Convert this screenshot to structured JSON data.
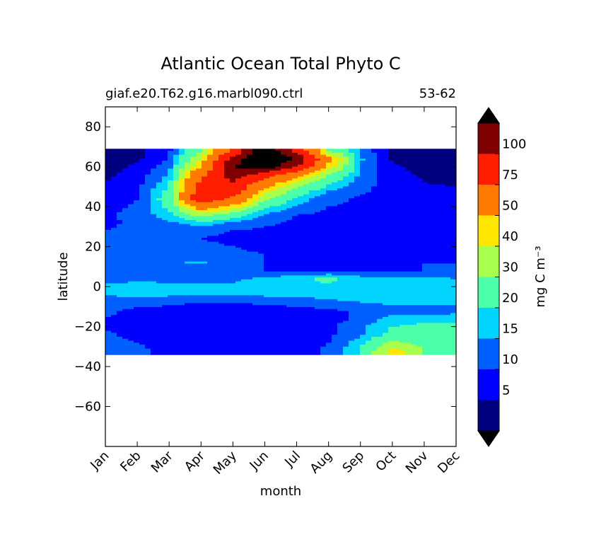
{
  "chart_data": {
    "type": "heatmap",
    "title": "Atlantic Ocean Total Phyto C",
    "subtitle_left": "giaf.e20.T62.g16.marbl090.ctrl",
    "subtitle_right": "53-62",
    "xlabel": "month",
    "ylabel": "latitude",
    "x_ticks": [
      "Jan",
      "Feb",
      "Mar",
      "Apr",
      "May",
      "Jun",
      "Jul",
      "Aug",
      "Sep",
      "Oct",
      "Nov",
      "Dec"
    ],
    "y_ticks": [
      80,
      60,
      40,
      20,
      0,
      -20,
      -40,
      -60
    ],
    "ylim": [
      -80,
      90
    ],
    "data_lat_range": [
      -34,
      69
    ],
    "colorbar": {
      "label": "mg C m⁻³",
      "tick_labels": [
        "5",
        "10",
        "15",
        "20",
        "30",
        "40",
        "50",
        "75",
        "100"
      ],
      "levels": [
        0,
        5,
        10,
        15,
        20,
        30,
        40,
        50,
        75,
        100,
        120
      ],
      "colors": [
        "#00007f",
        "#0000ff",
        "#0060ff",
        "#00d4ff",
        "#4cffaa",
        "#a8ff4c",
        "#ffe500",
        "#ff7a00",
        "#ff1e00",
        "#7f0000"
      ],
      "under_color": "#000000",
      "over_color": "#000000",
      "extend": "both"
    },
    "latitudes": [
      68,
      64,
      60,
      56,
      52,
      48,
      44,
      40,
      36,
      32,
      28,
      24,
      20,
      16,
      12,
      8,
      4,
      0,
      -4,
      -8,
      -12,
      -16,
      -20,
      -24,
      -28,
      -32
    ],
    "months": [
      1,
      2,
      3,
      4,
      5,
      6,
      7,
      8,
      9,
      10,
      11,
      12
    ],
    "values": [
      [
        2,
        4,
        9,
        30,
        80,
        140,
        90,
        30,
        14,
        4,
        2,
        1
      ],
      [
        1,
        4,
        10,
        40,
        110,
        140,
        120,
        55,
        16,
        4,
        2,
        1
      ],
      [
        3,
        6,
        13,
        50,
        120,
        135,
        100,
        45,
        15,
        6,
        3,
        2
      ],
      [
        4,
        7,
        16,
        70,
        110,
        90,
        55,
        30,
        14,
        7,
        4,
        3
      ],
      [
        5,
        8,
        18,
        80,
        100,
        60,
        38,
        22,
        12,
        8,
        5,
        4
      ],
      [
        6,
        9,
        22,
        90,
        90,
        45,
        25,
        15,
        11,
        8,
        7,
        6
      ],
      [
        7,
        10,
        25,
        95,
        70,
        32,
        18,
        12,
        9,
        8,
        7,
        7
      ],
      [
        8,
        11,
        22,
        60,
        45,
        22,
        14,
        10,
        9,
        9,
        8,
        8
      ],
      [
        9,
        12,
        18,
        35,
        25,
        14,
        10,
        9,
        8,
        8,
        8,
        8
      ],
      [
        9,
        11,
        14,
        18,
        14,
        11,
        9,
        8,
        8,
        6,
        8,
        8
      ],
      [
        10,
        11,
        12,
        11,
        10,
        9,
        9,
        8,
        8,
        7,
        8,
        9
      ],
      [
        10,
        10,
        11,
        10,
        9,
        9,
        8,
        8,
        8,
        8,
        8,
        9
      ],
      [
        11,
        11,
        12,
        11,
        10,
        9,
        9,
        9,
        9,
        9,
        9,
        10
      ],
      [
        11,
        12,
        13,
        12,
        11,
        10,
        9,
        9,
        9,
        9,
        9,
        10
      ],
      [
        11,
        11,
        14,
        16,
        11,
        10,
        9,
        9,
        9,
        9,
        10,
        10
      ],
      [
        12,
        12,
        13,
        12,
        11,
        10,
        9,
        9,
        9,
        9,
        10,
        11
      ],
      [
        12,
        13,
        13,
        14,
        14,
        16,
        18,
        22,
        17,
        17,
        16,
        15
      ],
      [
        17,
        18,
        17,
        16,
        16,
        17,
        18,
        19,
        17,
        17,
        17,
        17
      ],
      [
        15,
        17,
        16,
        15,
        15,
        16,
        16,
        17,
        16,
        16,
        16,
        16
      ],
      [
        13,
        12,
        11,
        10,
        10,
        11,
        12,
        14,
        15,
        16,
        16,
        16
      ],
      [
        11,
        9,
        8,
        8,
        7,
        7,
        8,
        9,
        11,
        12,
        12,
        13
      ],
      [
        10,
        8,
        7,
        6,
        6,
        6,
        7,
        8,
        11,
        17,
        17,
        18
      ],
      [
        9,
        7,
        6,
        6,
        6,
        6,
        7,
        9,
        14,
        20,
        22,
        21
      ],
      [
        11,
        8,
        7,
        7,
        7,
        7,
        7,
        9,
        14,
        22,
        24,
        22
      ],
      [
        12,
        10,
        8,
        7,
        7,
        7,
        7,
        10,
        18,
        32,
        26,
        22
      ],
      [
        13,
        11,
        9,
        8,
        8,
        8,
        8,
        11,
        20,
        45,
        30,
        22
      ]
    ]
  }
}
